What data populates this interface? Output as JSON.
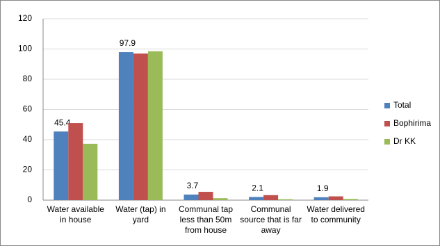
{
  "chart_data": {
    "type": "bar",
    "categories": [
      "Water available in house",
      "Water (tap) in yard",
      "Communal tap less than 50m from house",
      "Communal source that is far away",
      "Water delivered to community"
    ],
    "series": [
      {
        "name": "Total",
        "color": "#4f81bd",
        "values": [
          45.4,
          97.9,
          3.7,
          2.1,
          1.9
        ],
        "data_labels": true
      },
      {
        "name": "Bophirima",
        "color": "#c0504d",
        "values": [
          51,
          97,
          5.5,
          3.3,
          2.5
        ]
      },
      {
        "name": "Dr KK",
        "color": "#9bbb59",
        "values": [
          37.3,
          98.5,
          1.3,
          0.6,
          0.8
        ]
      }
    ],
    "ylim": [
      0,
      120
    ],
    "yticks": [
      0,
      20,
      40,
      60,
      80,
      100,
      120
    ],
    "grid": true,
    "legend": "right"
  }
}
